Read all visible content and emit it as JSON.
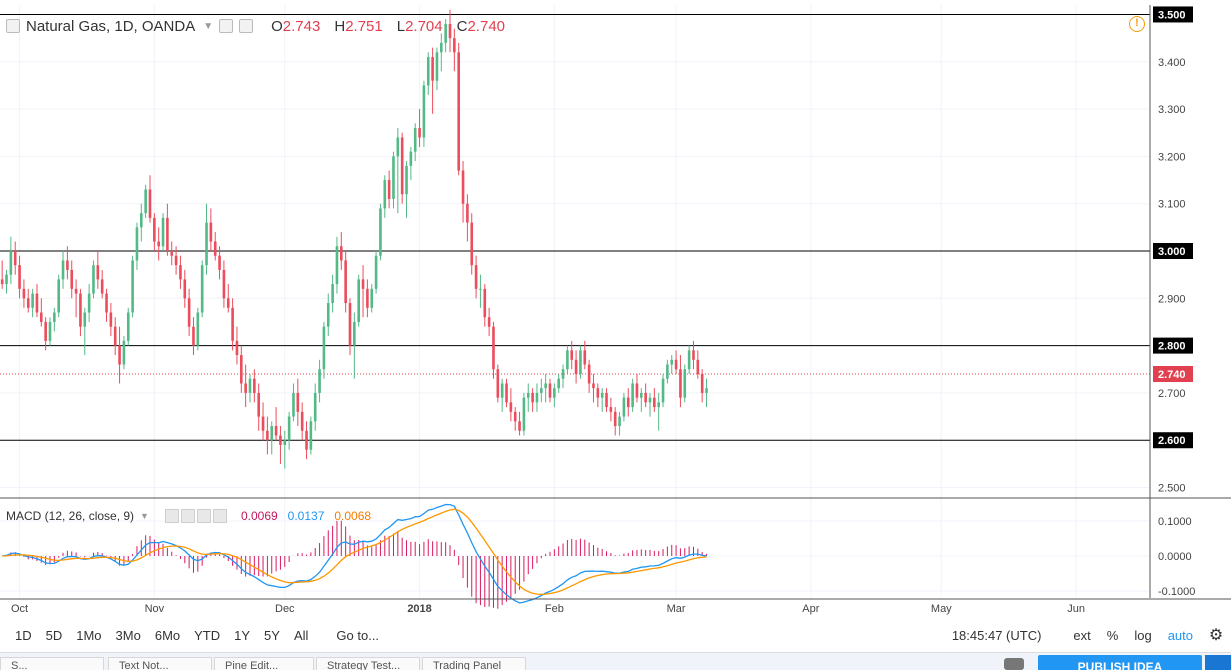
{
  "legend": {
    "symbol": "Natural Gas, 1D, OANDA",
    "o_label": "O",
    "o_value": "2.743",
    "h_label": "H",
    "h_value": "2.751",
    "l_label": "L",
    "l_value": "2.704",
    "c_label": "C",
    "c_value": "2.740"
  },
  "macd_legend": {
    "title": "MACD (12, 26, close, 9)",
    "v1": "0.0069",
    "v2": "0.0137",
    "v3": "0.0068"
  },
  "toolbar": {
    "ranges": [
      "1D",
      "5D",
      "1Mo",
      "3Mo",
      "6Mo",
      "YTD",
      "1Y",
      "5Y",
      "All"
    ],
    "goto": "Go to...",
    "time": "18:45:47 (UTC)",
    "ext": "ext",
    "pct": "%",
    "log": "log",
    "auto": "auto"
  },
  "bottom": {
    "tabs": [
      "S...",
      "Text Not...",
      "Pine Edit...",
      "Strategy Test...",
      "Trading Panel"
    ],
    "publish": "PUBLISH IDEA"
  },
  "colors": {
    "up": "#53b987",
    "down": "#eb4d5c",
    "macd": "#2196f3",
    "signal": "#ff9800",
    "hist_pos": "#d81b60",
    "current_price": "#e0404f"
  },
  "chart_data": {
    "type": "candlestick",
    "ylim": [
      2.48,
      3.52
    ],
    "y_ticks": [
      "3.500",
      "3.400",
      "3.300",
      "3.200",
      "3.100",
      "3.000",
      "2.900",
      "2.800",
      "2.700",
      "2.600",
      "2.500"
    ],
    "hlines": [
      "3.500",
      "3.000",
      "2.800",
      "2.600"
    ],
    "current_price": "2.740",
    "x_labels": [
      "Oct",
      "Nov",
      "Dec",
      "2018",
      "Feb",
      "Mar",
      "Apr",
      "May",
      "Jun"
    ],
    "x_label_days": [
      2,
      33,
      63,
      94,
      125,
      153,
      184,
      214,
      245
    ],
    "x_range_days": [
      -2.5,
      262
    ],
    "candles": [
      {
        "day": -2,
        "o": 2.94,
        "h": 2.98,
        "l": 2.92,
        "c": 2.93
      },
      {
        "day": -1,
        "o": 2.93,
        "h": 2.96,
        "l": 2.91,
        "c": 2.95
      },
      {
        "day": 0,
        "o": 2.95,
        "h": 3.03,
        "l": 2.93,
        "c": 3.0
      },
      {
        "day": 1,
        "o": 3.0,
        "h": 3.02,
        "l": 2.95,
        "c": 2.97
      },
      {
        "day": 2,
        "o": 2.97,
        "h": 2.99,
        "l": 2.9,
        "c": 2.92
      },
      {
        "day": 3,
        "o": 2.92,
        "h": 2.94,
        "l": 2.88,
        "c": 2.9
      },
      {
        "day": 4,
        "o": 2.9,
        "h": 2.92,
        "l": 2.87,
        "c": 2.88
      },
      {
        "day": 5,
        "o": 2.88,
        "h": 2.92,
        "l": 2.86,
        "c": 2.91
      },
      {
        "day": 6,
        "o": 2.91,
        "h": 2.93,
        "l": 2.86,
        "c": 2.87
      },
      {
        "day": 7,
        "o": 2.87,
        "h": 2.9,
        "l": 2.84,
        "c": 2.85
      },
      {
        "day": 8,
        "o": 2.85,
        "h": 2.86,
        "l": 2.79,
        "c": 2.81
      },
      {
        "day": 9,
        "o": 2.81,
        "h": 2.86,
        "l": 2.8,
        "c": 2.85
      },
      {
        "day": 10,
        "o": 2.85,
        "h": 2.88,
        "l": 2.83,
        "c": 2.87
      },
      {
        "day": 11,
        "o": 2.87,
        "h": 2.95,
        "l": 2.86,
        "c": 2.94
      },
      {
        "day": 12,
        "o": 2.94,
        "h": 3.0,
        "l": 2.92,
        "c": 2.98
      },
      {
        "day": 13,
        "o": 2.98,
        "h": 3.01,
        "l": 2.94,
        "c": 2.96
      },
      {
        "day": 14,
        "o": 2.96,
        "h": 2.98,
        "l": 2.9,
        "c": 2.92
      },
      {
        "day": 15,
        "o": 2.92,
        "h": 2.94,
        "l": 2.86,
        "c": 2.91
      },
      {
        "day": 16,
        "o": 2.91,
        "h": 2.92,
        "l": 2.82,
        "c": 2.84
      },
      {
        "day": 17,
        "o": 2.84,
        "h": 2.88,
        "l": 2.78,
        "c": 2.87
      },
      {
        "day": 18,
        "o": 2.87,
        "h": 2.93,
        "l": 2.85,
        "c": 2.91
      },
      {
        "day": 19,
        "o": 2.91,
        "h": 2.98,
        "l": 2.9,
        "c": 2.97
      },
      {
        "day": 20,
        "o": 2.97,
        "h": 3.0,
        "l": 2.92,
        "c": 2.94
      },
      {
        "day": 21,
        "o": 2.94,
        "h": 2.96,
        "l": 2.9,
        "c": 2.91
      },
      {
        "day": 22,
        "o": 2.91,
        "h": 2.92,
        "l": 2.85,
        "c": 2.87
      },
      {
        "day": 23,
        "o": 2.87,
        "h": 2.89,
        "l": 2.82,
        "c": 2.84
      },
      {
        "day": 24,
        "o": 2.84,
        "h": 2.86,
        "l": 2.78,
        "c": 2.8
      },
      {
        "day": 25,
        "o": 2.8,
        "h": 2.84,
        "l": 2.72,
        "c": 2.76
      },
      {
        "day": 26,
        "o": 2.76,
        "h": 2.82,
        "l": 2.75,
        "c": 2.81
      },
      {
        "day": 27,
        "o": 2.81,
        "h": 2.88,
        "l": 2.8,
        "c": 2.87
      },
      {
        "day": 28,
        "o": 2.87,
        "h": 2.99,
        "l": 2.86,
        "c": 2.98
      },
      {
        "day": 29,
        "o": 2.98,
        "h": 3.06,
        "l": 2.96,
        "c": 3.05
      },
      {
        "day": 30,
        "o": 3.05,
        "h": 3.1,
        "l": 3.02,
        "c": 3.08
      },
      {
        "day": 31,
        "o": 3.08,
        "h": 3.14,
        "l": 3.07,
        "c": 3.13
      },
      {
        "day": 32,
        "o": 3.13,
        "h": 3.16,
        "l": 3.06,
        "c": 3.07
      },
      {
        "day": 33,
        "o": 3.07,
        "h": 3.08,
        "l": 3.0,
        "c": 3.02
      },
      {
        "day": 34,
        "o": 3.02,
        "h": 3.05,
        "l": 2.98,
        "c": 3.01
      },
      {
        "day": 35,
        "o": 3.01,
        "h": 3.08,
        "l": 3.0,
        "c": 3.07
      },
      {
        "day": 36,
        "o": 3.07,
        "h": 3.1,
        "l": 2.99,
        "c": 3.0
      },
      {
        "day": 37,
        "o": 3.0,
        "h": 3.02,
        "l": 2.97,
        "c": 2.99
      },
      {
        "day": 38,
        "o": 2.99,
        "h": 3.01,
        "l": 2.95,
        "c": 2.97
      },
      {
        "day": 39,
        "o": 2.97,
        "h": 2.99,
        "l": 2.92,
        "c": 2.94
      },
      {
        "day": 40,
        "o": 2.94,
        "h": 2.96,
        "l": 2.88,
        "c": 2.9
      },
      {
        "day": 41,
        "o": 2.9,
        "h": 2.92,
        "l": 2.82,
        "c": 2.84
      },
      {
        "day": 42,
        "o": 2.84,
        "h": 2.86,
        "l": 2.78,
        "c": 2.8
      },
      {
        "day": 43,
        "o": 2.8,
        "h": 2.88,
        "l": 2.79,
        "c": 2.87
      },
      {
        "day": 44,
        "o": 2.87,
        "h": 2.98,
        "l": 2.86,
        "c": 2.97
      },
      {
        "day": 45,
        "o": 2.97,
        "h": 3.1,
        "l": 2.95,
        "c": 3.06
      },
      {
        "day": 46,
        "o": 3.06,
        "h": 3.09,
        "l": 3.0,
        "c": 3.02
      },
      {
        "day": 47,
        "o": 3.02,
        "h": 3.04,
        "l": 2.98,
        "c": 2.99
      },
      {
        "day": 48,
        "o": 2.99,
        "h": 3.01,
        "l": 2.94,
        "c": 2.96
      },
      {
        "day": 49,
        "o": 2.96,
        "h": 2.98,
        "l": 2.88,
        "c": 2.9
      },
      {
        "day": 50,
        "o": 2.9,
        "h": 2.93,
        "l": 2.87,
        "c": 2.88
      },
      {
        "day": 51,
        "o": 2.88,
        "h": 2.9,
        "l": 2.79,
        "c": 2.81
      },
      {
        "day": 52,
        "o": 2.81,
        "h": 2.84,
        "l": 2.76,
        "c": 2.78
      },
      {
        "day": 53,
        "o": 2.78,
        "h": 2.8,
        "l": 2.7,
        "c": 2.72
      },
      {
        "day": 54,
        "o": 2.72,
        "h": 2.76,
        "l": 2.67,
        "c": 2.7
      },
      {
        "day": 55,
        "o": 2.7,
        "h": 2.74,
        "l": 2.68,
        "c": 2.73
      },
      {
        "day": 56,
        "o": 2.73,
        "h": 2.75,
        "l": 2.68,
        "c": 2.7
      },
      {
        "day": 57,
        "o": 2.7,
        "h": 2.72,
        "l": 2.62,
        "c": 2.65
      },
      {
        "day": 58,
        "o": 2.65,
        "h": 2.68,
        "l": 2.6,
        "c": 2.62
      },
      {
        "day": 59,
        "o": 2.62,
        "h": 2.65,
        "l": 2.57,
        "c": 2.6
      },
      {
        "day": 60,
        "o": 2.6,
        "h": 2.64,
        "l": 2.57,
        "c": 2.63
      },
      {
        "day": 61,
        "o": 2.63,
        "h": 2.67,
        "l": 2.6,
        "c": 2.61
      },
      {
        "day": 62,
        "o": 2.61,
        "h": 2.63,
        "l": 2.55,
        "c": 2.59
      },
      {
        "day": 63,
        "o": 2.59,
        "h": 2.62,
        "l": 2.54,
        "c": 2.6
      },
      {
        "day": 64,
        "o": 2.6,
        "h": 2.66,
        "l": 2.58,
        "c": 2.65
      },
      {
        "day": 65,
        "o": 2.65,
        "h": 2.72,
        "l": 2.64,
        "c": 2.7
      },
      {
        "day": 66,
        "o": 2.7,
        "h": 2.73,
        "l": 2.63,
        "c": 2.66
      },
      {
        "day": 67,
        "o": 2.66,
        "h": 2.68,
        "l": 2.6,
        "c": 2.62
      },
      {
        "day": 68,
        "o": 2.62,
        "h": 2.64,
        "l": 2.56,
        "c": 2.58
      },
      {
        "day": 69,
        "o": 2.58,
        "h": 2.65,
        "l": 2.57,
        "c": 2.64
      },
      {
        "day": 70,
        "o": 2.64,
        "h": 2.72,
        "l": 2.62,
        "c": 2.7
      },
      {
        "day": 71,
        "o": 2.7,
        "h": 2.77,
        "l": 2.68,
        "c": 2.75
      },
      {
        "day": 72,
        "o": 2.75,
        "h": 2.85,
        "l": 2.73,
        "c": 2.84
      },
      {
        "day": 73,
        "o": 2.84,
        "h": 2.91,
        "l": 2.82,
        "c": 2.89
      },
      {
        "day": 74,
        "o": 2.89,
        "h": 2.95,
        "l": 2.87,
        "c": 2.93
      },
      {
        "day": 75,
        "o": 2.93,
        "h": 3.03,
        "l": 2.91,
        "c": 3.01
      },
      {
        "day": 76,
        "o": 3.01,
        "h": 3.04,
        "l": 2.96,
        "c": 2.98
      },
      {
        "day": 77,
        "o": 2.98,
        "h": 3.0,
        "l": 2.87,
        "c": 2.89
      },
      {
        "day": 78,
        "o": 2.89,
        "h": 2.9,
        "l": 2.78,
        "c": 2.8
      },
      {
        "day": 79,
        "o": 2.8,
        "h": 2.87,
        "l": 2.73,
        "c": 2.85
      },
      {
        "day": 80,
        "o": 2.85,
        "h": 2.95,
        "l": 2.84,
        "c": 2.94
      },
      {
        "day": 81,
        "o": 2.94,
        "h": 2.97,
        "l": 2.86,
        "c": 2.92
      },
      {
        "day": 82,
        "o": 2.92,
        "h": 2.94,
        "l": 2.86,
        "c": 2.88
      },
      {
        "day": 83,
        "o": 2.88,
        "h": 2.93,
        "l": 2.87,
        "c": 2.92
      },
      {
        "day": 84,
        "o": 2.92,
        "h": 3.0,
        "l": 2.91,
        "c": 2.99
      },
      {
        "day": 85,
        "o": 2.99,
        "h": 3.1,
        "l": 2.98,
        "c": 3.09
      },
      {
        "day": 86,
        "o": 3.09,
        "h": 3.16,
        "l": 3.07,
        "c": 3.15
      },
      {
        "day": 87,
        "o": 3.15,
        "h": 3.17,
        "l": 3.09,
        "c": 3.11
      },
      {
        "day": 88,
        "o": 3.11,
        "h": 3.21,
        "l": 3.09,
        "c": 3.2
      },
      {
        "day": 89,
        "o": 3.2,
        "h": 3.26,
        "l": 3.08,
        "c": 3.24
      },
      {
        "day": 90,
        "o": 3.24,
        "h": 3.25,
        "l": 3.1,
        "c": 3.12
      },
      {
        "day": 91,
        "o": 3.12,
        "h": 3.19,
        "l": 3.07,
        "c": 3.18
      },
      {
        "day": 92,
        "o": 3.18,
        "h": 3.22,
        "l": 3.15,
        "c": 3.21
      },
      {
        "day": 93,
        "o": 3.21,
        "h": 3.27,
        "l": 3.19,
        "c": 3.26
      },
      {
        "day": 94,
        "o": 3.26,
        "h": 3.3,
        "l": 3.22,
        "c": 3.24
      },
      {
        "day": 95,
        "o": 3.24,
        "h": 3.36,
        "l": 3.22,
        "c": 3.35
      },
      {
        "day": 96,
        "o": 3.35,
        "h": 3.42,
        "l": 3.33,
        "c": 3.41
      },
      {
        "day": 97,
        "o": 3.41,
        "h": 3.43,
        "l": 3.29,
        "c": 3.36
      },
      {
        "day": 98,
        "o": 3.36,
        "h": 3.43,
        "l": 3.34,
        "c": 3.42
      },
      {
        "day": 99,
        "o": 3.42,
        "h": 3.46,
        "l": 3.38,
        "c": 3.44
      },
      {
        "day": 100,
        "o": 3.44,
        "h": 3.49,
        "l": 3.42,
        "c": 3.48
      },
      {
        "day": 101,
        "o": 3.48,
        "h": 3.51,
        "l": 3.42,
        "c": 3.45
      },
      {
        "day": 102,
        "o": 3.45,
        "h": 3.47,
        "l": 3.38,
        "c": 3.42
      },
      {
        "day": 103,
        "o": 3.42,
        "h": 3.44,
        "l": 3.16,
        "c": 3.17
      },
      {
        "day": 104,
        "o": 3.17,
        "h": 3.19,
        "l": 3.06,
        "c": 3.1
      },
      {
        "day": 105,
        "o": 3.1,
        "h": 3.12,
        "l": 3.02,
        "c": 3.06
      },
      {
        "day": 106,
        "o": 3.06,
        "h": 3.08,
        "l": 2.95,
        "c": 2.97
      },
      {
        "day": 107,
        "o": 2.97,
        "h": 2.99,
        "l": 2.9,
        "c": 2.92
      },
      {
        "day": 108,
        "o": 2.92,
        "h": 2.95,
        "l": 2.88,
        "c": 2.92
      },
      {
        "day": 109,
        "o": 2.92,
        "h": 2.93,
        "l": 2.84,
        "c": 2.86
      },
      {
        "day": 110,
        "o": 2.86,
        "h": 2.88,
        "l": 2.82,
        "c": 2.84
      },
      {
        "day": 111,
        "o": 2.84,
        "h": 2.85,
        "l": 2.73,
        "c": 2.75
      },
      {
        "day": 112,
        "o": 2.75,
        "h": 2.76,
        "l": 2.68,
        "c": 2.69
      },
      {
        "day": 113,
        "o": 2.69,
        "h": 2.73,
        "l": 2.66,
        "c": 2.72
      },
      {
        "day": 114,
        "o": 2.72,
        "h": 2.73,
        "l": 2.67,
        "c": 2.68
      },
      {
        "day": 115,
        "o": 2.68,
        "h": 2.71,
        "l": 2.64,
        "c": 2.66
      },
      {
        "day": 116,
        "o": 2.66,
        "h": 2.67,
        "l": 2.62,
        "c": 2.64
      },
      {
        "day": 117,
        "o": 2.64,
        "h": 2.66,
        "l": 2.61,
        "c": 2.62
      },
      {
        "day": 118,
        "o": 2.62,
        "h": 2.7,
        "l": 2.61,
        "c": 2.69
      },
      {
        "day": 119,
        "o": 2.69,
        "h": 2.72,
        "l": 2.66,
        "c": 2.7
      },
      {
        "day": 120,
        "o": 2.7,
        "h": 2.71,
        "l": 2.66,
        "c": 2.68
      },
      {
        "day": 121,
        "o": 2.68,
        "h": 2.72,
        "l": 2.66,
        "c": 2.7
      },
      {
        "day": 122,
        "o": 2.7,
        "h": 2.73,
        "l": 2.68,
        "c": 2.71
      },
      {
        "day": 123,
        "o": 2.71,
        "h": 2.74,
        "l": 2.68,
        "c": 2.72
      },
      {
        "day": 124,
        "o": 2.72,
        "h": 2.73,
        "l": 2.68,
        "c": 2.69
      },
      {
        "day": 125,
        "o": 2.69,
        "h": 2.72,
        "l": 2.67,
        "c": 2.71
      },
      {
        "day": 126,
        "o": 2.71,
        "h": 2.74,
        "l": 2.7,
        "c": 2.73
      },
      {
        "day": 127,
        "o": 2.73,
        "h": 2.76,
        "l": 2.71,
        "c": 2.75
      },
      {
        "day": 128,
        "o": 2.75,
        "h": 2.8,
        "l": 2.74,
        "c": 2.79
      },
      {
        "day": 129,
        "o": 2.79,
        "h": 2.81,
        "l": 2.75,
        "c": 2.77
      },
      {
        "day": 130,
        "o": 2.77,
        "h": 2.79,
        "l": 2.72,
        "c": 2.74
      },
      {
        "day": 131,
        "o": 2.74,
        "h": 2.8,
        "l": 2.73,
        "c": 2.79
      },
      {
        "day": 132,
        "o": 2.79,
        "h": 2.81,
        "l": 2.75,
        "c": 2.76
      },
      {
        "day": 133,
        "o": 2.76,
        "h": 2.77,
        "l": 2.7,
        "c": 2.72
      },
      {
        "day": 134,
        "o": 2.72,
        "h": 2.74,
        "l": 2.68,
        "c": 2.71
      },
      {
        "day": 135,
        "o": 2.71,
        "h": 2.72,
        "l": 2.67,
        "c": 2.69
      },
      {
        "day": 136,
        "o": 2.69,
        "h": 2.71,
        "l": 2.66,
        "c": 2.7
      },
      {
        "day": 137,
        "o": 2.7,
        "h": 2.71,
        "l": 2.66,
        "c": 2.67
      },
      {
        "day": 138,
        "o": 2.67,
        "h": 2.69,
        "l": 2.64,
        "c": 2.66
      },
      {
        "day": 139,
        "o": 2.66,
        "h": 2.67,
        "l": 2.61,
        "c": 2.63
      },
      {
        "day": 140,
        "o": 2.63,
        "h": 2.66,
        "l": 2.61,
        "c": 2.65
      },
      {
        "day": 141,
        "o": 2.65,
        "h": 2.7,
        "l": 2.64,
        "c": 2.69
      },
      {
        "day": 142,
        "o": 2.69,
        "h": 2.71,
        "l": 2.65,
        "c": 2.67
      },
      {
        "day": 143,
        "o": 2.67,
        "h": 2.73,
        "l": 2.66,
        "c": 2.72
      },
      {
        "day": 144,
        "o": 2.72,
        "h": 2.74,
        "l": 2.68,
        "c": 2.69
      },
      {
        "day": 145,
        "o": 2.69,
        "h": 2.71,
        "l": 2.66,
        "c": 2.7
      },
      {
        "day": 146,
        "o": 2.7,
        "h": 2.72,
        "l": 2.67,
        "c": 2.68
      },
      {
        "day": 147,
        "o": 2.68,
        "h": 2.7,
        "l": 2.65,
        "c": 2.69
      },
      {
        "day": 148,
        "o": 2.69,
        "h": 2.71,
        "l": 2.66,
        "c": 2.67
      },
      {
        "day": 149,
        "o": 2.67,
        "h": 2.7,
        "l": 2.62,
        "c": 2.68
      },
      {
        "day": 150,
        "o": 2.68,
        "h": 2.74,
        "l": 2.67,
        "c": 2.73
      },
      {
        "day": 151,
        "o": 2.73,
        "h": 2.77,
        "l": 2.72,
        "c": 2.76
      },
      {
        "day": 152,
        "o": 2.76,
        "h": 2.78,
        "l": 2.74,
        "c": 2.77
      },
      {
        "day": 153,
        "o": 2.77,
        "h": 2.79,
        "l": 2.74,
        "c": 2.75
      },
      {
        "day": 154,
        "o": 2.75,
        "h": 2.78,
        "l": 2.67,
        "c": 2.69
      },
      {
        "day": 155,
        "o": 2.69,
        "h": 2.76,
        "l": 2.68,
        "c": 2.75
      },
      {
        "day": 156,
        "o": 2.75,
        "h": 2.8,
        "l": 2.74,
        "c": 2.79
      },
      {
        "day": 157,
        "o": 2.79,
        "h": 2.81,
        "l": 2.75,
        "c": 2.77
      },
      {
        "day": 158,
        "o": 2.77,
        "h": 2.79,
        "l": 2.73,
        "c": 2.74
      },
      {
        "day": 159,
        "o": 2.74,
        "h": 2.75,
        "l": 2.68,
        "c": 2.7
      },
      {
        "day": 160,
        "o": 2.7,
        "h": 2.73,
        "l": 2.67,
        "c": 2.71
      }
    ],
    "macd_ylim": [
      -0.12,
      0.16
    ],
    "macd_ticks": [
      "0.1000",
      "0.0000",
      "-0.1000"
    ]
  }
}
